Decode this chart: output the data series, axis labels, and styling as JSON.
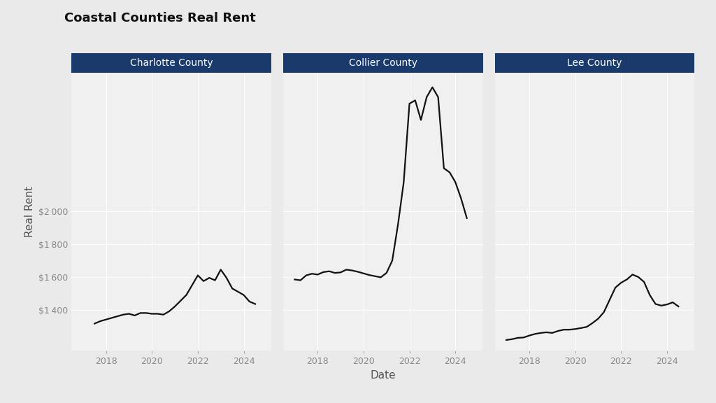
{
  "title": "Coastal Counties Real Rent",
  "xlabel": "Date",
  "ylabel": "Real Rent",
  "panel_header_color": "#1a3a6b",
  "panel_header_text_color": "#ffffff",
  "background_color": "#eaeaea",
  "plot_background_color": "#f0f0f0",
  "line_color": "#111111",
  "line_width": 1.6,
  "grid_color": "#ffffff",
  "tick_color": "#888888",
  "counties": [
    "Charlotte County",
    "Collier County",
    "Lee County"
  ],
  "charlotte": {
    "dates": [
      2017.5,
      2017.75,
      2018.0,
      2018.25,
      2018.5,
      2018.75,
      2019.0,
      2019.25,
      2019.5,
      2019.75,
      2020.0,
      2020.25,
      2020.5,
      2020.75,
      2021.0,
      2021.25,
      2021.5,
      2021.75,
      2022.0,
      2022.25,
      2022.5,
      2022.75,
      2023.0,
      2023.25,
      2023.5,
      2023.75,
      2024.0,
      2024.25,
      2024.5
    ],
    "values": [
      1315,
      1330,
      1340,
      1350,
      1360,
      1370,
      1375,
      1365,
      1380,
      1380,
      1375,
      1375,
      1370,
      1390,
      1420,
      1455,
      1490,
      1550,
      1610,
      1575,
      1595,
      1580,
      1645,
      1595,
      1530,
      1510,
      1490,
      1450,
      1435
    ]
  },
  "collier": {
    "dates": [
      2017.0,
      2017.25,
      2017.5,
      2017.75,
      2018.0,
      2018.25,
      2018.5,
      2018.75,
      2019.0,
      2019.25,
      2019.5,
      2019.75,
      2020.0,
      2020.25,
      2020.5,
      2020.75,
      2021.0,
      2021.25,
      2021.5,
      2021.75,
      2022.0,
      2022.25,
      2022.5,
      2022.75,
      2023.0,
      2023.25,
      2023.5,
      2023.75,
      2024.0,
      2024.25,
      2024.5
    ],
    "values": [
      1585,
      1580,
      1610,
      1620,
      1615,
      1630,
      1635,
      1625,
      1628,
      1645,
      1640,
      1632,
      1622,
      1612,
      1605,
      1598,
      1625,
      1700,
      1920,
      2180,
      2660,
      2680,
      2560,
      2700,
      2760,
      2700,
      2265,
      2240,
      2180,
      2080,
      1960
    ]
  },
  "lee": {
    "dates": [
      2017.0,
      2017.25,
      2017.5,
      2017.75,
      2018.0,
      2018.25,
      2018.5,
      2018.75,
      2019.0,
      2019.25,
      2019.5,
      2019.75,
      2020.0,
      2020.25,
      2020.5,
      2020.75,
      2021.0,
      2021.25,
      2021.5,
      2021.75,
      2022.0,
      2022.25,
      2022.5,
      2022.75,
      2023.0,
      2023.25,
      2023.5,
      2023.75,
      2024.0,
      2024.25,
      2024.5
    ],
    "values": [
      1215,
      1220,
      1228,
      1230,
      1242,
      1252,
      1258,
      1262,
      1258,
      1270,
      1278,
      1278,
      1282,
      1288,
      1295,
      1318,
      1345,
      1385,
      1460,
      1535,
      1565,
      1585,
      1615,
      1600,
      1570,
      1490,
      1435,
      1425,
      1432,
      1445,
      1420
    ]
  },
  "ylim": [
    1150,
    2850
  ],
  "yticks": [
    1400,
    1600,
    1800,
    2000
  ],
  "xlim": [
    2016.5,
    2025.2
  ],
  "xticks": [
    2018,
    2020,
    2022,
    2024
  ]
}
